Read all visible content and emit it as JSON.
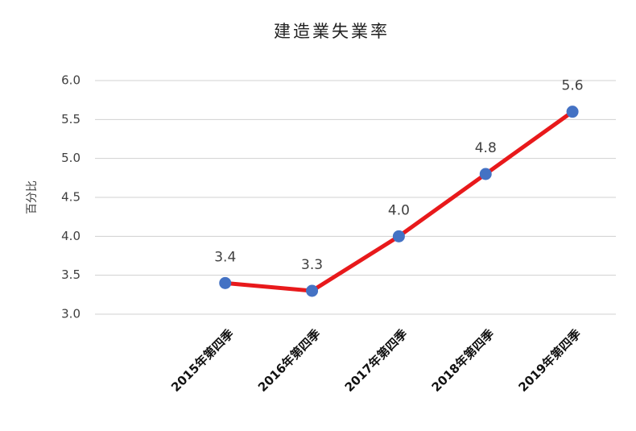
{
  "chart_data": {
    "type": "line",
    "title": "建造業失業率",
    "y_label": "百分比",
    "categories": [
      null,
      "2015年第四季",
      "2016年第四季",
      "2017年第四季",
      "2018年第四季",
      "2019年第四季"
    ],
    "values": [
      null,
      3.4,
      3.3,
      4.0,
      4.8,
      5.6
    ],
    "value_labels": [
      null,
      "3.4",
      "3.3",
      "4.0",
      "4.8",
      "5.6"
    ],
    "color": "#e8191b",
    "marker_color": "#4472c4",
    "ylim": [
      3.0,
      6.0
    ],
    "yticks": [
      {
        "value": 3.0,
        "label": "3.0"
      },
      3.5,
      {
        "value": 4.0,
        "label": "4.0"
      },
      4.5,
      {
        "value": 5.0,
        "label": "5.0"
      },
      5.5,
      {
        "value": 6.0,
        "label": "6.0"
      }
    ],
    "grid": true
  }
}
